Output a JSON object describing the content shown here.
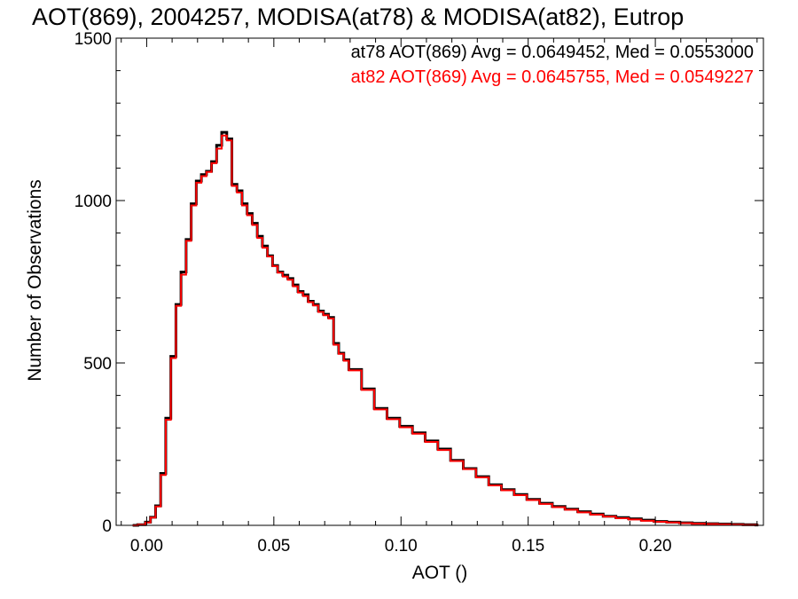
{
  "title": "AOT(869), 2004257, MODISA(at78) & MODISA(at82), Eutrop",
  "chart_data": {
    "type": "line",
    "style": "histogram-step",
    "xlabel": "AOT ()",
    "ylabel": "Number of Observations",
    "xlim": [
      -0.012,
      0.2425
    ],
    "ylim": [
      0,
      1500
    ],
    "x_ticks": [
      0.0,
      0.05,
      0.1,
      0.15,
      0.2
    ],
    "x_tick_labels": [
      "0.00",
      "0.05",
      "0.10",
      "0.15",
      "0.20"
    ],
    "y_ticks": [
      0,
      500,
      1000,
      1500
    ],
    "y_tick_labels": [
      "0",
      "500",
      "1000",
      "1500"
    ],
    "bin_width": 0.001,
    "x": [
      -0.005,
      -0.003,
      0.0,
      0.002,
      0.004,
      0.006,
      0.008,
      0.01,
      0.012,
      0.014,
      0.016,
      0.018,
      0.02,
      0.022,
      0.024,
      0.026,
      0.028,
      0.03,
      0.032,
      0.034,
      0.036,
      0.038,
      0.04,
      0.042,
      0.044,
      0.046,
      0.048,
      0.05,
      0.052,
      0.054,
      0.056,
      0.058,
      0.06,
      0.062,
      0.064,
      0.066,
      0.068,
      0.07,
      0.072,
      0.074,
      0.076,
      0.078,
      0.08,
      0.085,
      0.09,
      0.095,
      0.1,
      0.105,
      0.11,
      0.115,
      0.12,
      0.125,
      0.13,
      0.135,
      0.14,
      0.145,
      0.15,
      0.155,
      0.16,
      0.165,
      0.17,
      0.175,
      0.18,
      0.185,
      0.19,
      0.195,
      0.2,
      0.205,
      0.21,
      0.215,
      0.22,
      0.225,
      0.23,
      0.235,
      0.24
    ],
    "series": [
      {
        "name": "at78",
        "color": "#000000",
        "avg_label": "at78 AOT(869) Avg = 0.0649452, Med = 0.0553000",
        "values": [
          0,
          2,
          10,
          25,
          60,
          160,
          330,
          520,
          680,
          780,
          880,
          990,
          1060,
          1080,
          1090,
          1120,
          1170,
          1210,
          1190,
          1050,
          1030,
          990,
          960,
          930,
          890,
          860,
          830,
          800,
          780,
          770,
          760,
          740,
          720,
          710,
          690,
          680,
          660,
          650,
          640,
          560,
          530,
          510,
          480,
          420,
          360,
          330,
          305,
          285,
          260,
          235,
          200,
          175,
          150,
          125,
          110,
          95,
          80,
          68,
          58,
          50,
          42,
          35,
          28,
          24,
          20,
          16,
          12,
          10,
          8,
          6,
          5,
          4,
          3,
          2,
          1
        ]
      },
      {
        "name": "at82",
        "color": "#ff0000",
        "avg_label": "at82 AOT(869) Avg = 0.0645755, Med = 0.0549227",
        "values": [
          0,
          2,
          9,
          24,
          58,
          155,
          325,
          515,
          676,
          772,
          876,
          985,
          1055,
          1075,
          1088,
          1115,
          1160,
          1200,
          1185,
          1045,
          1025,
          985,
          955,
          925,
          885,
          855,
          828,
          798,
          778,
          766,
          756,
          736,
          717,
          706,
          687,
          677,
          657,
          647,
          637,
          556,
          528,
          507,
          477,
          417,
          357,
          327,
          302,
          282,
          257,
          232,
          198,
          173,
          148,
          123,
          108,
          93,
          78,
          66,
          56,
          48,
          40,
          33,
          27,
          22,
          18,
          14,
          11,
          9,
          7,
          5,
          4,
          3,
          2,
          1,
          1
        ]
      }
    ]
  }
}
